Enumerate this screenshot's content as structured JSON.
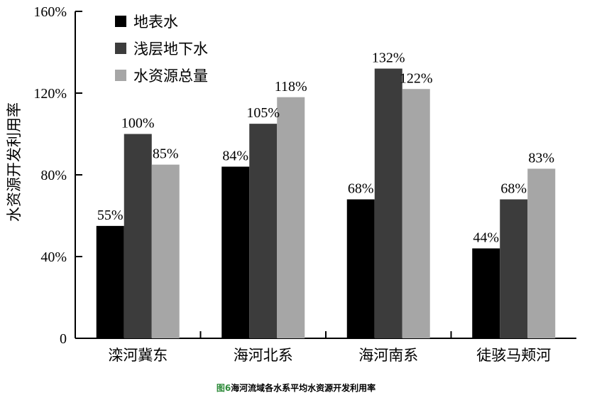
{
  "chart_data": {
    "type": "bar",
    "ylabel": "水资源开发利用率",
    "ylim": [
      0,
      160
    ],
    "yticks": [
      "0",
      "40%",
      "80%",
      "120%",
      "160%"
    ],
    "ytick_values": [
      0,
      40,
      80,
      120,
      160
    ],
    "categories": [
      "滦河冀东",
      "海河北系",
      "海河南系",
      "徒骇马颊河"
    ],
    "series": [
      {
        "name": "地表水",
        "color": "#000000",
        "values": [
          55,
          84,
          68,
          44
        ],
        "labels": [
          "55%",
          "84%",
          "68%",
          "44%"
        ]
      },
      {
        "name": "浅层地下水",
        "color": "#3c3c3c",
        "values": [
          100,
          105,
          132,
          68
        ],
        "labels": [
          "100%",
          "105%",
          "132%",
          "68%"
        ]
      },
      {
        "name": "水资源总量",
        "color": "#a6a6a6",
        "values": [
          85,
          118,
          122,
          83
        ],
        "labels": [
          "85%",
          "118%",
          "122%",
          "83%"
        ]
      }
    ],
    "legend_position": "top-left",
    "grid": false
  },
  "caption": {
    "prefix": "图6",
    "text": "海河流域各水系平均水资源开发利用率"
  }
}
